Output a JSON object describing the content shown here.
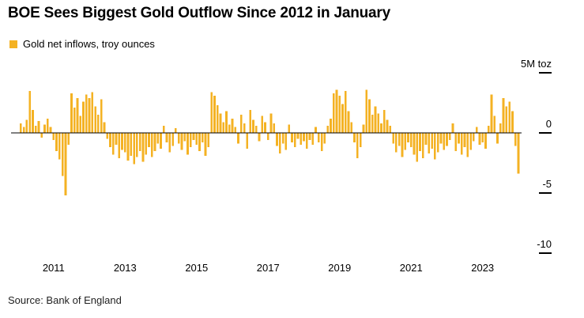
{
  "header": {
    "title": "BOE Sees Biggest Gold Outflow Since 2012 in January"
  },
  "footer": {
    "source": "Source: Bank of England"
  },
  "chart_data": {
    "type": "bar",
    "title": "BOE Sees Biggest Gold Outflow Since 2012 in January",
    "legend": "Gold net inflows, troy ounces",
    "unit": "M troy ounces",
    "frequency": "monthly",
    "start_month": "2010-02",
    "end_month": "2024-01",
    "bar_color": "#F4B223",
    "axis_color": "#000000",
    "ylim": [
      -10,
      5
    ],
    "y_ticks": [
      {
        "value": 5,
        "label": "5M toz"
      },
      {
        "value": 0,
        "label": "0"
      },
      {
        "value": -5,
        "label": "-5"
      },
      {
        "value": -10,
        "label": "-10"
      }
    ],
    "x_ticks": [
      "2011",
      "2013",
      "2015",
      "2017",
      "2019",
      "2021",
      "2023"
    ],
    "values": [
      0.8,
      0.5,
      1.1,
      3.5,
      1.9,
      0.6,
      1.0,
      -0.4,
      0.7,
      1.2,
      0.5,
      -0.6,
      -1.5,
      -2.2,
      -3.6,
      -5.2,
      -1.0,
      3.3,
      2.1,
      2.9,
      1.4,
      2.6,
      3.2,
      2.9,
      3.4,
      2.2,
      1.5,
      2.8,
      0.9,
      -0.5,
      -1.2,
      -1.8,
      -1.0,
      -2.1,
      -1.4,
      -1.6,
      -2.3,
      -1.9,
      -2.6,
      -2.0,
      -1.5,
      -2.4,
      -1.8,
      -1.2,
      -2.0,
      -1.5,
      -0.9,
      -1.3,
      0.6,
      -0.8,
      -1.6,
      -1.1,
      0.4,
      -0.9,
      -1.4,
      -0.7,
      -1.8,
      -1.2,
      -0.6,
      -1.0,
      -1.5,
      -0.8,
      -1.9,
      -1.2,
      3.4,
      3.1,
      2.3,
      1.6,
      0.9,
      1.8,
      0.7,
      1.2,
      0.5,
      -0.9,
      1.5,
      0.8,
      -1.3,
      1.9,
      1.1,
      0.6,
      -0.7,
      1.4,
      0.9,
      -0.6,
      1.6,
      0.8,
      -1.1,
      -1.7,
      -0.9,
      -1.4,
      0.7,
      -0.8,
      -1.2,
      -0.5,
      -1.0,
      -0.7,
      -1.3,
      -0.6,
      -1.0,
      0.5,
      -0.8,
      -1.5,
      -0.9,
      0.6,
      1.2,
      3.3,
      3.6,
      3.1,
      2.4,
      3.5,
      1.8,
      0.9,
      -0.8,
      -2.1,
      -1.2,
      0.7,
      3.6,
      2.8,
      1.5,
      2.2,
      1.6,
      0.8,
      1.9,
      1.1,
      0.6,
      -0.9,
      -1.6,
      -1.1,
      -2.0,
      -1.4,
      -0.8,
      -1.2,
      -1.8,
      -2.4,
      -1.5,
      -2.1,
      -1.0,
      -1.7,
      -1.3,
      -2.2,
      -1.6,
      -0.9,
      -1.4,
      -1.1,
      -0.6,
      0.8,
      -1.5,
      -0.9,
      -1.8,
      -1.2,
      -2.0,
      -1.4,
      -0.7,
      0.5,
      -1.0,
      -0.8,
      -1.3,
      0.6,
      3.2,
      1.4,
      -0.9,
      0.8,
      2.9,
      2.2,
      2.6,
      1.8,
      -1.1,
      -3.4
    ]
  }
}
